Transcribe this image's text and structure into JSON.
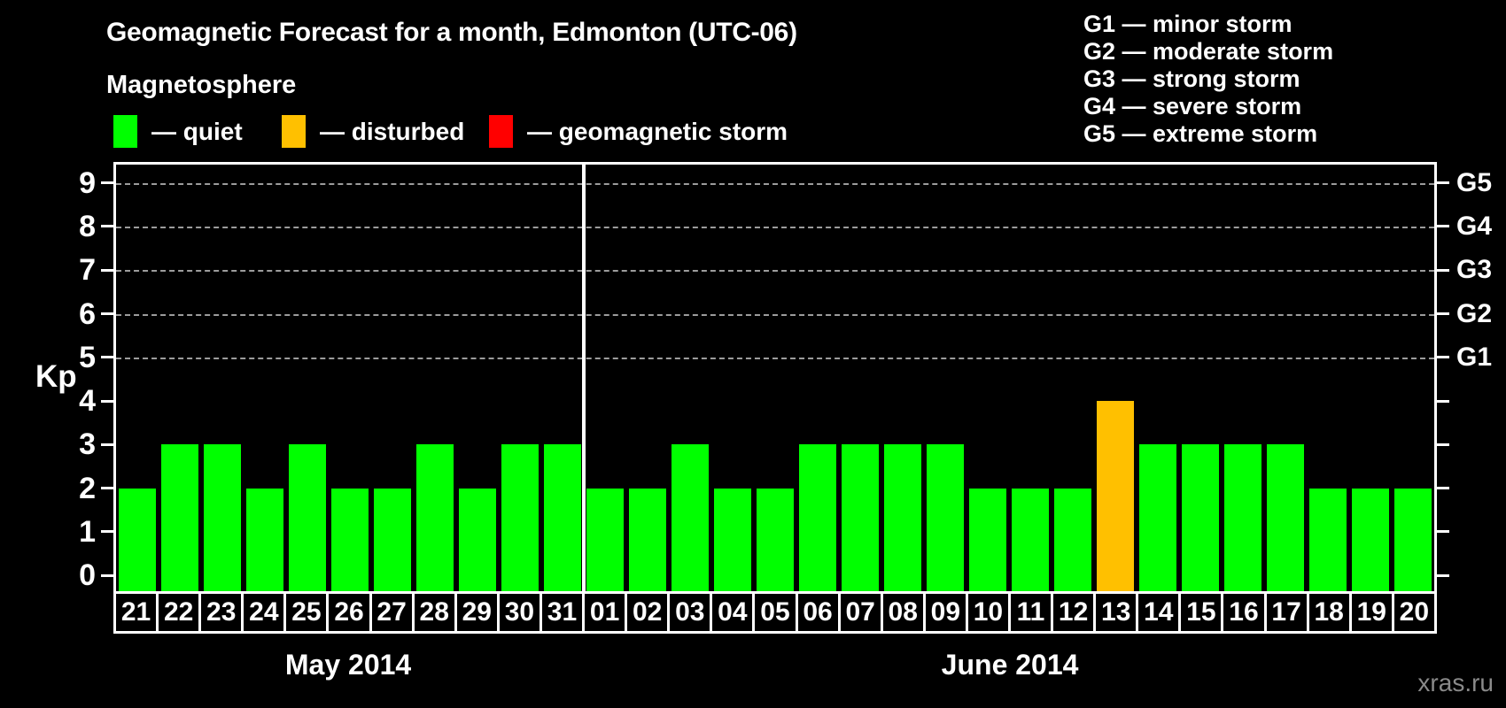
{
  "watermark": "xras.ru",
  "colors": {
    "background": "#000000",
    "quiet": "#00FF00",
    "disturbed": "#FFC000",
    "storm": "#FF0000",
    "grid": "#9C9C9C",
    "axis": "#FFFFFF"
  },
  "chart_data": {
    "type": "bar",
    "title": "Geomagnetic Forecast for a month, Edmonton (UTC-06)",
    "legend_title": "Magnetosphere",
    "legend": [
      {
        "status": "quiet",
        "label": "— quiet",
        "color": "#00FF00"
      },
      {
        "status": "disturbed",
        "label": "— disturbed",
        "color": "#FFC000"
      },
      {
        "status": "storm",
        "label": "— geomagnetic storm",
        "color": "#FF0000"
      }
    ],
    "storm_scale_legend": [
      "G1 — minor storm",
      "G2 — moderate storm",
      "G3 — strong storm",
      "G4 — severe storm",
      "G5 — extreme storm"
    ],
    "ylabel": "Kp",
    "ylim": [
      0,
      9
    ],
    "ylim_draw": [
      -0.36,
      9.42
    ],
    "y_ticks": [
      0,
      1,
      2,
      3,
      4,
      5,
      6,
      7,
      8,
      9
    ],
    "gridlines_at": [
      5,
      6,
      7,
      8,
      9
    ],
    "grid": true,
    "legend_position": "top-left",
    "right_axis_labels": [
      {
        "value": 5,
        "label": "G1"
      },
      {
        "value": 6,
        "label": "G2"
      },
      {
        "value": 7,
        "label": "G3"
      },
      {
        "value": 8,
        "label": "G4"
      },
      {
        "value": 9,
        "label": "G5"
      }
    ],
    "month_groups": [
      {
        "label": "May 2014",
        "count": 11
      },
      {
        "label": "June 2014",
        "count": 20
      }
    ],
    "categories": [
      "21",
      "22",
      "23",
      "24",
      "25",
      "26",
      "27",
      "28",
      "29",
      "30",
      "31",
      "01",
      "02",
      "03",
      "04",
      "05",
      "06",
      "07",
      "08",
      "09",
      "10",
      "11",
      "12",
      "13",
      "14",
      "15",
      "16",
      "17",
      "18",
      "19",
      "20"
    ],
    "values": [
      2,
      3,
      3,
      2,
      3,
      2,
      2,
      3,
      2,
      3,
      3,
      2,
      2,
      3,
      2,
      2,
      3,
      3,
      3,
      3,
      2,
      2,
      2,
      4,
      3,
      3,
      3,
      3,
      2,
      2,
      2
    ],
    "statuses": [
      "quiet",
      "quiet",
      "quiet",
      "quiet",
      "quiet",
      "quiet",
      "quiet",
      "quiet",
      "quiet",
      "quiet",
      "quiet",
      "quiet",
      "quiet",
      "quiet",
      "quiet",
      "quiet",
      "quiet",
      "quiet",
      "quiet",
      "quiet",
      "quiet",
      "quiet",
      "quiet",
      "disturbed",
      "quiet",
      "quiet",
      "quiet",
      "quiet",
      "quiet",
      "quiet",
      "quiet"
    ]
  }
}
